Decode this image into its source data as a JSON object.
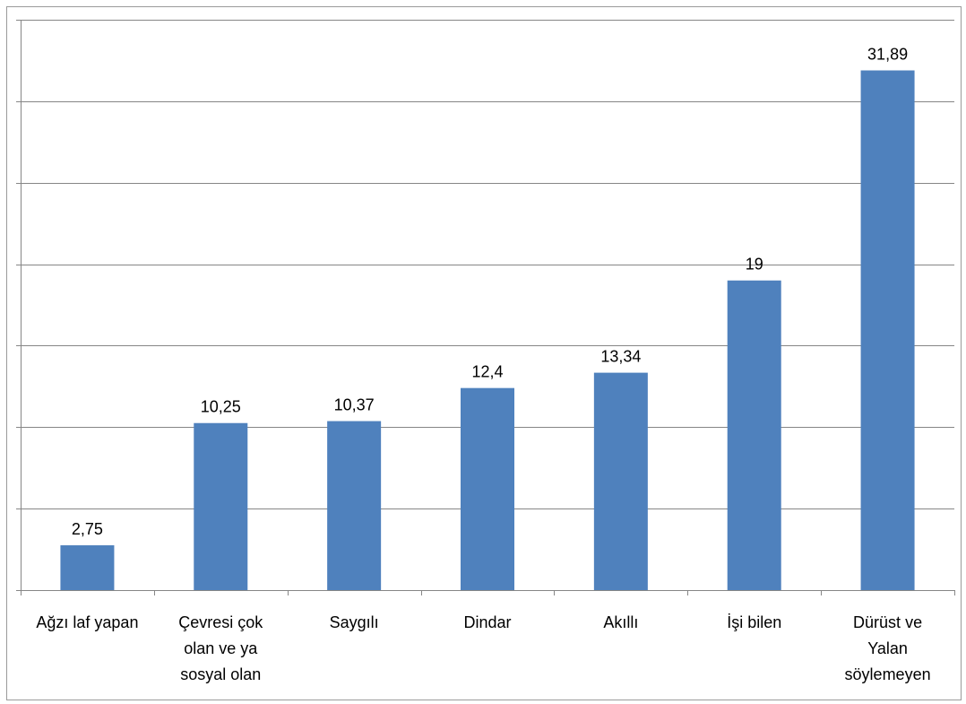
{
  "chart_data": {
    "type": "bar",
    "categories": [
      "Ağzı laf yapan",
      "Çevresi çok olan ve ya sosyal olan",
      "Saygılı",
      "Dindar",
      "Akıllı",
      "İşi bilen",
      "Dürüst ve Yalan söylemeyen"
    ],
    "category_lines": [
      [
        "Ağzı laf yapan"
      ],
      [
        "Çevresi çok",
        "olan ve ya",
        "sosyal olan"
      ],
      [
        "Saygılı"
      ],
      [
        "Dindar"
      ],
      [
        "Akıllı"
      ],
      [
        "İşi bilen"
      ],
      [
        "Dürüst ve",
        "Yalan",
        "söylemeyen"
      ]
    ],
    "values": [
      2.75,
      10.25,
      10.37,
      12.4,
      13.34,
      19,
      31.89
    ],
    "value_labels": [
      "2,75",
      "10,25",
      "10,37",
      "12,4",
      "13,34",
      "19",
      "31,89"
    ],
    "title": "",
    "xlabel": "",
    "ylabel": "",
    "ylim": [
      0,
      35
    ],
    "y_gridline_step": 5,
    "y_tick_labels_shown": false,
    "grid": true,
    "legend": "none",
    "colors": {
      "bar": "#4F81BD",
      "gridline": "#868686",
      "axis": "#868686"
    }
  }
}
